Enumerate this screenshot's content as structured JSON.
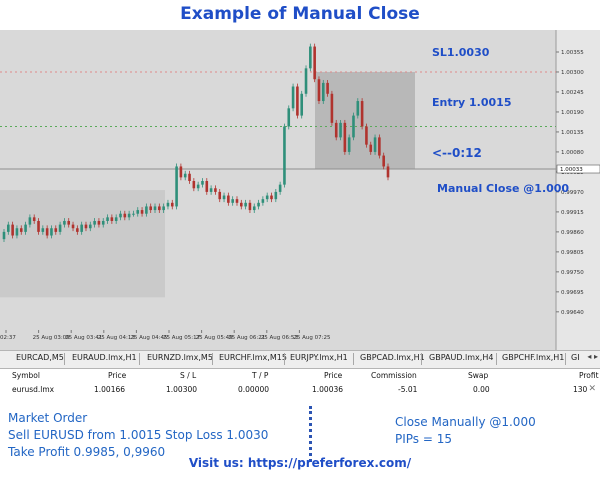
{
  "title": "Example of Manual Close",
  "chart_data": {
    "type": "candlestick",
    "annotations": {
      "sl": "SL1.0030",
      "entry": "Entry 1.0015",
      "timer": "<--0:12",
      "manual_close": "Manual Close @1.000"
    },
    "y_ticks": [
      "1.00355",
      "1.00300",
      "1.00245",
      "1.00190",
      "1.00135",
      "1.00080",
      "1.00025",
      "0.99970",
      "0.99915",
      "0.99860",
      "0.99805",
      "0.99750",
      "0.99695",
      "0.99640"
    ],
    "current_price_label": "1.00033",
    "x_ticks": [
      "02:37",
      "25 Aug 03:09",
      "25 Aug 03:41",
      "25 Aug 04:13",
      "25 Aug 04:45",
      "25 Aug 05:17",
      "25 Aug 05:49",
      "25 Aug 06:21",
      "25 Aug 06:53",
      "25 Aug 07:25"
    ],
    "ylim": [
      0.9959,
      1.0041
    ],
    "close_prices": [
      0.9986,
      0.9988,
      0.9985,
      0.9987,
      0.9986,
      0.9988,
      0.999,
      0.9989,
      0.9986,
      0.9987,
      0.9985,
      0.9987,
      0.9986,
      0.9988,
      0.9989,
      0.9988,
      0.9987,
      0.9986,
      0.9988,
      0.9987,
      0.9988,
      0.9989,
      0.9988,
      0.9989,
      0.999,
      0.9989,
      0.999,
      0.9991,
      0.999,
      0.9991,
      0.9991,
      0.9992,
      0.9991,
      0.9993,
      0.9992,
      0.9993,
      0.9992,
      0.9993,
      0.9994,
      0.9993,
      1.0004,
      1.0001,
      1.0002,
      1.0,
      0.9998,
      0.9999,
      1.0,
      0.9997,
      0.9998,
      0.9997,
      0.9995,
      0.9996,
      0.9994,
      0.9995,
      0.9994,
      0.9993,
      0.9994,
      0.9992,
      0.9993,
      0.9994,
      0.9995,
      0.9996,
      0.9995,
      0.9997,
      0.9999,
      1.0015,
      1.002,
      1.0026,
      1.0018,
      1.0024,
      1.0031,
      1.0037,
      1.0028,
      1.0022,
      1.0027,
      1.0024,
      1.0016,
      1.0012,
      1.0016,
      1.0008,
      1.0012,
      1.0018,
      1.0022,
      1.0015,
      1.001,
      1.0008,
      1.0012,
      1.0007,
      1.0004,
      1.0001
    ]
  },
  "tabs": [
    "EURCAD,M5",
    "EURAUD.lmx,H1",
    "EURNZD.lmx,M5",
    "EURCHF.lmx,M15",
    "EURJPY.lmx,H1",
    "GBPCAD.lmx,H1",
    "GBPAUD.lmx,H4",
    "GBPCHF.lmx,H1",
    "GI"
  ],
  "tab_arrows": "◂ ▸",
  "table": {
    "headers": {
      "symbol": "Symbol",
      "price": "Price",
      "sl": "S / L",
      "tp": "T / P",
      "price2": "Price",
      "commission": "Commission",
      "swap": "Swap",
      "profit": "Profit"
    },
    "row": {
      "symbol": "eurusd.lmx",
      "price": "1.00166",
      "sl": "1.00300",
      "tp": "0.00000",
      "price2": "1.00036",
      "commission": "-5.01",
      "swap": "0.00",
      "profit": "130"
    }
  },
  "notes_left": [
    "Market Order",
    "Sell EURUSD from 1.0015 Stop Loss 1.0030",
    "Take Profit 0.9985, 0,9960"
  ],
  "notes_right": [
    "Close Manually @1.000",
    "PIPs = 15"
  ],
  "footer": "Visit us: https://preferforex.com/",
  "colors": {
    "accent": "#1f4ec7",
    "bull": "#2f8f7a",
    "bear": "#b0332e",
    "sl_line": "#e08a8a",
    "entry_line": "#5aaa5a"
  }
}
